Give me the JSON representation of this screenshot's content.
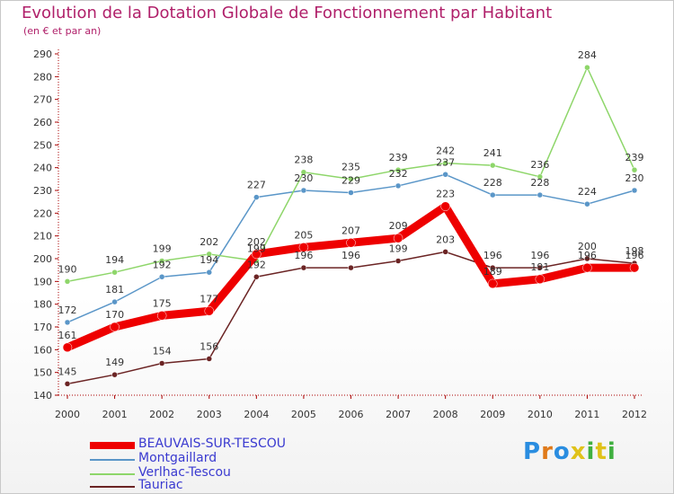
{
  "title": "Evolution de la Dotation Globale de Fonctionnement par Habitant",
  "subtitle": "(en € et par an)",
  "brand": {
    "text": "Proxiti",
    "colors": [
      "#2a8de0",
      "#e07a1a",
      "#2a8de0",
      "#e0c21a",
      "#40b040",
      "#e0c21a",
      "#40b040"
    ]
  },
  "chart_data": {
    "type": "line",
    "title": "Evolution de la Dotation Globale de Fonctionnement par Habitant",
    "subtitle": "(en € et par an)",
    "xlabel": "",
    "ylabel": "",
    "categories": [
      "2000",
      "2001",
      "2002",
      "2003",
      "2004",
      "2005",
      "2006",
      "2007",
      "2008",
      "2009",
      "2010",
      "2011",
      "2012"
    ],
    "ylim": [
      140,
      290
    ],
    "yticks": [
      140,
      150,
      160,
      170,
      180,
      190,
      200,
      210,
      220,
      230,
      240,
      250,
      260,
      270,
      280,
      290
    ],
    "grid": false,
    "legend": "bottom-left",
    "series": [
      {
        "name": "BEAUVAIS-SUR-TESCOU",
        "color": "#ee0000",
        "values": [
          161,
          170,
          175,
          177,
          202,
          205,
          207,
          209,
          223,
          189,
          191,
          196,
          196
        ],
        "labels": [
          "161",
          "170",
          "175",
          "177",
          "202",
          "205",
          "207",
          "209",
          "223",
          "189",
          "191",
          "196",
          "196"
        ]
      },
      {
        "name": "Montgaillard",
        "color": "#5a96c8",
        "values": [
          172,
          181,
          192,
          194,
          227,
          230,
          229,
          232,
          237,
          228,
          228,
          224,
          230
        ],
        "labels": [
          "172",
          "181",
          "192",
          "194",
          "227",
          "230",
          "229",
          "232",
          "237",
          "228",
          "228",
          "224",
          "230"
        ]
      },
      {
        "name": "Verlhac-Tescou",
        "color": "#8ed66a",
        "values": [
          190,
          194,
          199,
          202,
          199,
          238,
          235,
          239,
          242,
          241,
          236,
          284,
          239
        ],
        "labels": [
          "190",
          "194",
          "199",
          "202",
          "199",
          "238",
          "235",
          "239",
          "242",
          "241",
          "236",
          "284",
          "239"
        ]
      },
      {
        "name": "Tauriac",
        "color": "#6b2424",
        "values": [
          145,
          149,
          154,
          156,
          192,
          196,
          196,
          199,
          203,
          196,
          196,
          200,
          198
        ],
        "labels": [
          "145",
          "149",
          "154",
          "156",
          "192",
          "196",
          "196",
          "199",
          "203",
          "196",
          "196",
          "200",
          "198"
        ]
      }
    ]
  }
}
